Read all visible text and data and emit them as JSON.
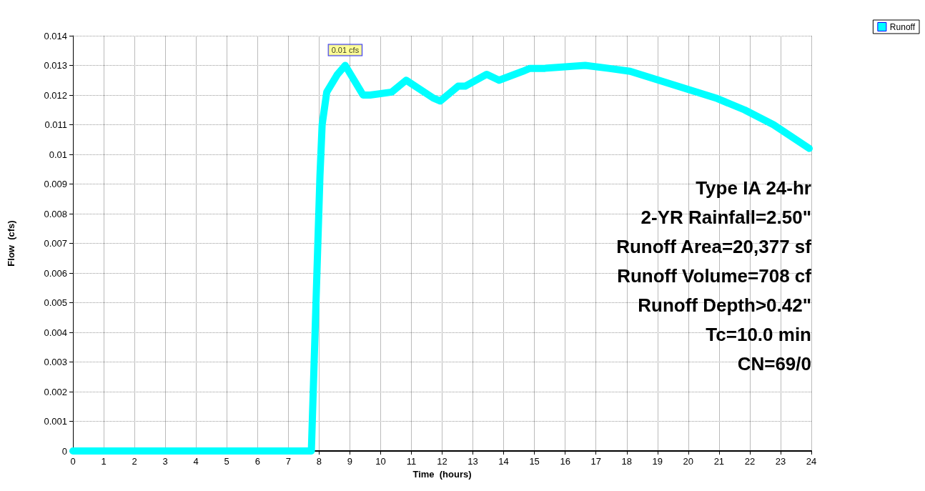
{
  "chart_data": {
    "type": "line",
    "xlabel": "Time  (hours)",
    "ylabel": "Flow  (cfs)",
    "x": [
      0,
      7.75,
      8.03,
      8.1,
      8.25,
      8.6,
      8.85,
      9.43,
      9.66,
      10.36,
      10.83,
      11.71,
      11.94,
      12.52,
      12.75,
      13.45,
      13.85,
      14.62,
      14.85,
      15.32,
      16.65,
      17.41,
      18.11,
      19.04,
      19.97,
      20.9,
      21.83,
      22.77,
      23.93
    ],
    "series": [
      {
        "name": "Runoff",
        "color": "#00ffff",
        "values": [
          0,
          0,
          0.0093,
          0.011,
          0.0121,
          0.0127,
          0.013,
          0.012,
          0.012,
          0.0121,
          0.0125,
          0.0119,
          0.0118,
          0.0123,
          0.0123,
          0.0127,
          0.0125,
          0.0128,
          0.0129,
          0.0129,
          0.013,
          0.0129,
          0.0128,
          0.0125,
          0.0122,
          0.0119,
          0.0115,
          0.011,
          0.0102
        ]
      }
    ],
    "xlim": [
      0,
      24
    ],
    "xticks": [
      0,
      1,
      2,
      3,
      4,
      5,
      6,
      7,
      8,
      9,
      10,
      11,
      12,
      13,
      14,
      15,
      16,
      17,
      18,
      19,
      20,
      21,
      22,
      23,
      24
    ],
    "ylim": [
      0,
      0.014
    ],
    "yticks": [
      0,
      0.001,
      0.002,
      0.003,
      0.004,
      0.005,
      0.006,
      0.007,
      0.008,
      0.009,
      0.01,
      0.011,
      0.012,
      0.013,
      0.014
    ],
    "grid": true,
    "legend": "top right",
    "annotations": [
      {
        "text": "0.01 cfs",
        "x": 8.85,
        "y": 0.013
      },
      "Type IA 24-hr",
      "2-YR Rainfall=2.50\"",
      "Runoff Area=20,377 sf",
      "Runoff Volume=708 cf",
      "Runoff Depth>0.42\"",
      "Tc=10.0 min",
      "CN=69/0"
    ]
  }
}
